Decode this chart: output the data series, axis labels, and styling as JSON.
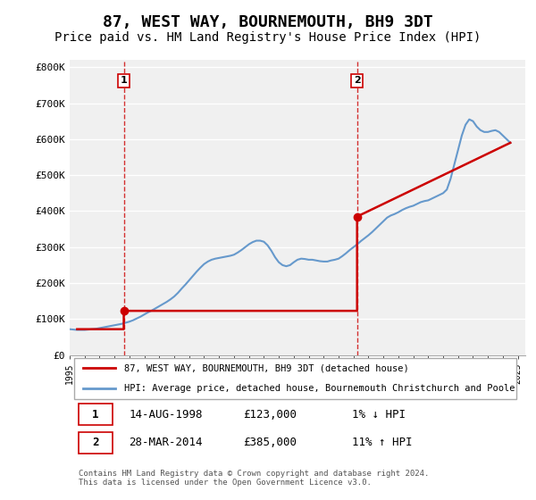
{
  "title": "87, WEST WAY, BOURNEMOUTH, BH9 3DT",
  "subtitle": "Price paid vs. HM Land Registry's House Price Index (HPI)",
  "title_fontsize": 13,
  "subtitle_fontsize": 10,
  "ylabel_ticks": [
    "£0",
    "£100K",
    "£200K",
    "£300K",
    "£400K",
    "£500K",
    "£600K",
    "£700K",
    "£800K"
  ],
  "ytick_values": [
    0,
    100000,
    200000,
    300000,
    400000,
    500000,
    600000,
    700000,
    800000
  ],
  "ylim": [
    0,
    820000
  ],
  "xlim_start": 1995.0,
  "xlim_end": 2025.5,
  "xtick_years": [
    1995,
    1996,
    1997,
    1998,
    1999,
    2000,
    2001,
    2002,
    2003,
    2004,
    2005,
    2006,
    2007,
    2008,
    2009,
    2010,
    2011,
    2012,
    2013,
    2014,
    2015,
    2016,
    2017,
    2018,
    2019,
    2020,
    2021,
    2022,
    2023,
    2024,
    2025
  ],
  "background_color": "#ffffff",
  "plot_bg_color": "#f0f0f0",
  "grid_color": "#ffffff",
  "hpi_line_color": "#6699cc",
  "price_line_color": "#cc0000",
  "dashed_line_color": "#cc0000",
  "marker_color": "#cc0000",
  "sale1_x": 1998.62,
  "sale1_y": 123000,
  "sale1_label": "1",
  "sale2_x": 2014.24,
  "sale2_y": 385000,
  "sale2_label": "2",
  "legend_line1": "87, WEST WAY, BOURNEMOUTH, BH9 3DT (detached house)",
  "legend_line2": "HPI: Average price, detached house, Bournemouth Christchurch and Poole",
  "table_rows": [
    [
      "1",
      "14-AUG-1998",
      "£123,000",
      "1% ↓ HPI"
    ],
    [
      "2",
      "28-MAR-2014",
      "£385,000",
      "11% ↑ HPI"
    ]
  ],
  "footer": "Contains HM Land Registry data © Crown copyright and database right 2024.\nThis data is licensed under the Open Government Licence v3.0.",
  "hpi_data_x": [
    1995.0,
    1995.25,
    1995.5,
    1995.75,
    1996.0,
    1996.25,
    1996.5,
    1996.75,
    1997.0,
    1997.25,
    1997.5,
    1997.75,
    1998.0,
    1998.25,
    1998.5,
    1998.75,
    1999.0,
    1999.25,
    1999.5,
    1999.75,
    2000.0,
    2000.25,
    2000.5,
    2000.75,
    2001.0,
    2001.25,
    2001.5,
    2001.75,
    2002.0,
    2002.25,
    2002.5,
    2002.75,
    2003.0,
    2003.25,
    2003.5,
    2003.75,
    2004.0,
    2004.25,
    2004.5,
    2004.75,
    2005.0,
    2005.25,
    2005.5,
    2005.75,
    2006.0,
    2006.25,
    2006.5,
    2006.75,
    2007.0,
    2007.25,
    2007.5,
    2007.75,
    2008.0,
    2008.25,
    2008.5,
    2008.75,
    2009.0,
    2009.25,
    2009.5,
    2009.75,
    2010.0,
    2010.25,
    2010.5,
    2010.75,
    2011.0,
    2011.25,
    2011.5,
    2011.75,
    2012.0,
    2012.25,
    2012.5,
    2012.75,
    2013.0,
    2013.25,
    2013.5,
    2013.75,
    2014.0,
    2014.25,
    2014.5,
    2014.75,
    2015.0,
    2015.25,
    2015.5,
    2015.75,
    2016.0,
    2016.25,
    2016.5,
    2016.75,
    2017.0,
    2017.25,
    2017.5,
    2017.75,
    2018.0,
    2018.25,
    2018.5,
    2018.75,
    2019.0,
    2019.25,
    2019.5,
    2019.75,
    2020.0,
    2020.25,
    2020.5,
    2020.75,
    2021.0,
    2021.25,
    2021.5,
    2021.75,
    2022.0,
    2022.25,
    2022.5,
    2022.75,
    2023.0,
    2023.25,
    2023.5,
    2023.75,
    2024.0,
    2024.25,
    2024.5
  ],
  "hpi_data_y": [
    72000,
    71000,
    70000,
    70000,
    70000,
    71000,
    72000,
    73000,
    75000,
    77000,
    79000,
    81000,
    83000,
    85000,
    87000,
    90000,
    93000,
    97000,
    102000,
    107000,
    113000,
    119000,
    124000,
    130000,
    136000,
    142000,
    148000,
    155000,
    163000,
    173000,
    185000,
    196000,
    208000,
    220000,
    232000,
    243000,
    253000,
    260000,
    265000,
    268000,
    270000,
    272000,
    274000,
    276000,
    279000,
    285000,
    292000,
    300000,
    308000,
    314000,
    318000,
    318000,
    315000,
    305000,
    290000,
    272000,
    258000,
    250000,
    247000,
    250000,
    258000,
    265000,
    268000,
    267000,
    265000,
    265000,
    263000,
    261000,
    260000,
    260000,
    263000,
    265000,
    268000,
    275000,
    283000,
    292000,
    300000,
    308000,
    317000,
    325000,
    333000,
    342000,
    352000,
    362000,
    372000,
    382000,
    388000,
    392000,
    397000,
    403000,
    408000,
    412000,
    415000,
    420000,
    425000,
    428000,
    430000,
    435000,
    440000,
    445000,
    450000,
    460000,
    490000,
    530000,
    570000,
    610000,
    640000,
    655000,
    650000,
    635000,
    625000,
    620000,
    620000,
    623000,
    625000,
    620000,
    610000,
    600000,
    590000
  ],
  "price_data_x": [
    1995.5,
    1998.62,
    1998.62,
    2014.24,
    2014.24,
    2024.5
  ],
  "price_data_y": [
    72000,
    72000,
    123000,
    123000,
    385000,
    590000
  ]
}
